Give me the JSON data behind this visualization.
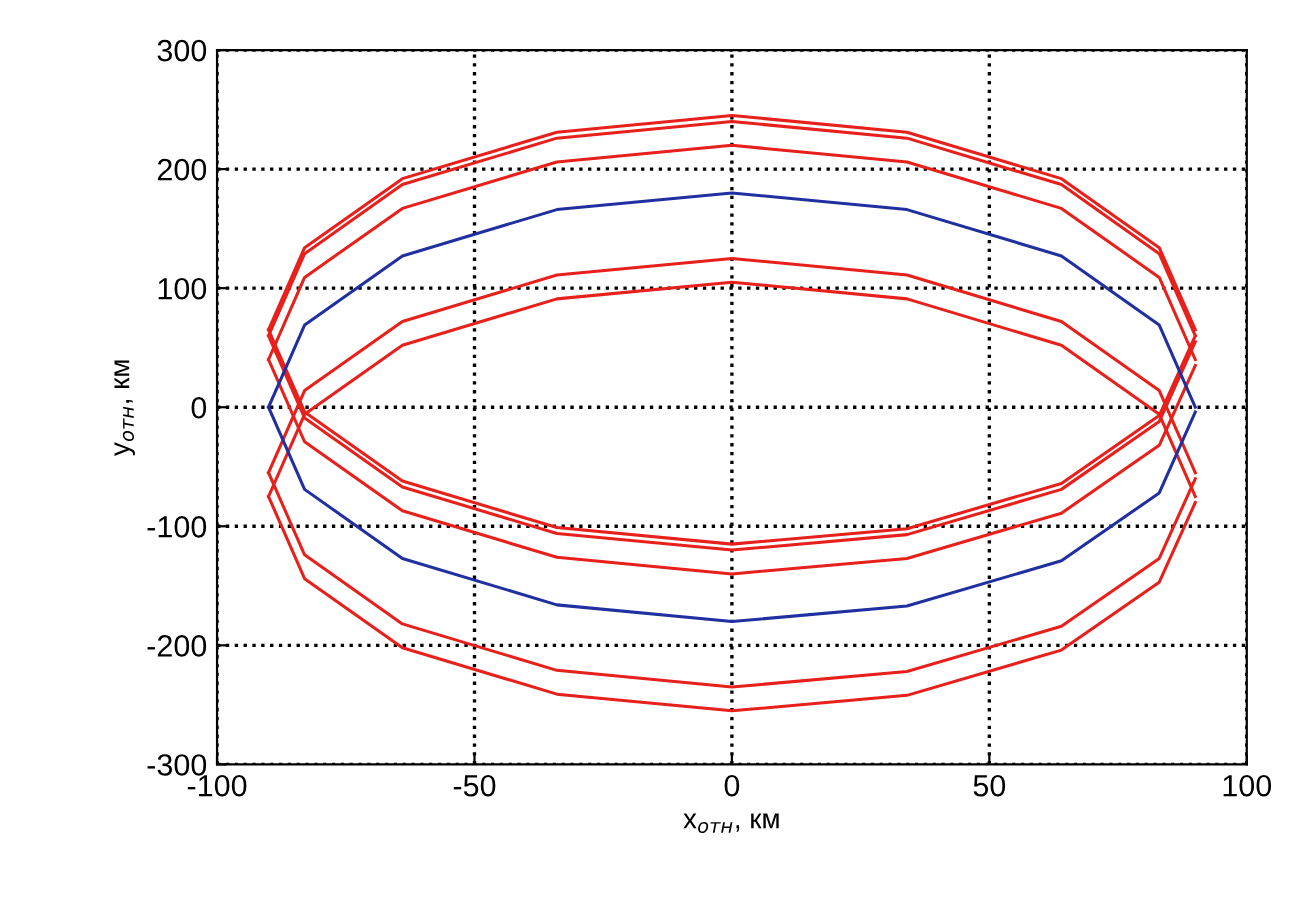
{
  "chart_data": {
    "type": "line",
    "xlabel": "x$_{отн}$, км",
    "ylabel": "y$_{отн}$, км",
    "x": [
      -90,
      -83,
      -64,
      -34,
      0,
      34,
      64,
      83,
      90
    ],
    "series": [
      {
        "color": "#e8201c",
        "values": [
          65,
          134,
          192,
          231,
          245,
          231,
          192,
          134,
          65
        ]
      },
      {
        "color": "#e8201c",
        "values": [
          65,
          -4,
          -62,
          -101,
          -115,
          -102,
          -64,
          -7,
          60
        ]
      },
      {
        "color": "#e8201c",
        "values": [
          60,
          129,
          187,
          226,
          240,
          226,
          187,
          129,
          60
        ]
      },
      {
        "color": "#e8201c",
        "values": [
          60,
          -9,
          -67,
          -106,
          -120,
          -107,
          -69,
          -12,
          55
        ]
      },
      {
        "color": "#e8201c",
        "values": [
          40,
          109,
          167,
          206,
          220,
          206,
          167,
          109,
          40
        ]
      },
      {
        "color": "#e8201c",
        "values": [
          40,
          -29,
          -87,
          -126,
          -140,
          -127,
          -89,
          -32,
          35
        ]
      },
      {
        "color": "#e8201c",
        "values": [
          -55,
          14,
          72,
          111,
          125,
          111,
          72,
          14,
          -55
        ]
      },
      {
        "color": "#e8201c",
        "values": [
          -55,
          -124,
          -182,
          -221,
          -235,
          -222,
          -184,
          -127,
          -60
        ]
      },
      {
        "color": "#e8201c",
        "values": [
          -75,
          -6,
          52,
          91,
          105,
          91,
          52,
          -6,
          -75
        ]
      },
      {
        "color": "#e8201c",
        "values": [
          -75,
          -144,
          -202,
          -241,
          -255,
          -242,
          -204,
          -147,
          -80
        ]
      },
      {
        "color": "#2030a0",
        "values": [
          0,
          69,
          127,
          166,
          180,
          166,
          127,
          69,
          0
        ]
      },
      {
        "color": "#2030a0",
        "values": [
          0,
          -69,
          -127,
          -166,
          -180,
          -167,
          -129,
          -72,
          -4
        ]
      }
    ],
    "xlim": [
      -100,
      100
    ],
    "xticks": [
      -100,
      -50,
      0,
      50,
      100
    ],
    "ylim": [
      -300,
      300
    ],
    "yticks": [
      -300,
      -200,
      -100,
      0,
      100,
      200,
      300
    ],
    "grid": true,
    "line_style": "solid",
    "marker": "none"
  }
}
